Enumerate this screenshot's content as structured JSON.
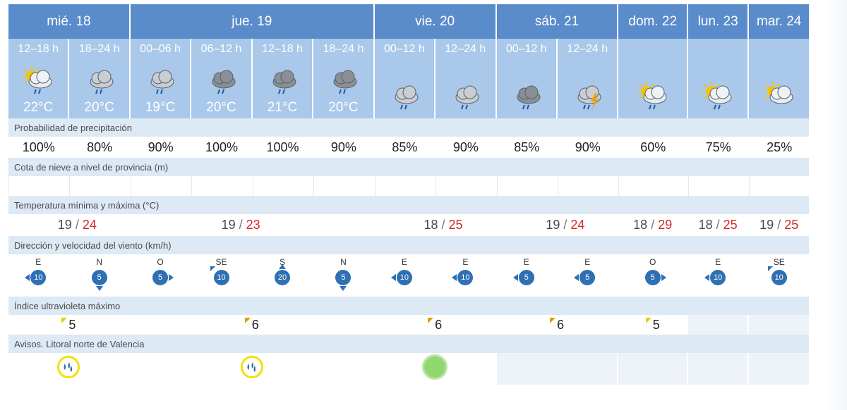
{
  "days": [
    {
      "label": "mié. 18",
      "span": 2
    },
    {
      "label": "jue. 19",
      "span": 4
    },
    {
      "label": "vie. 20",
      "span": 2
    },
    {
      "label": "sáb. 21",
      "span": 2
    },
    {
      "label": "dom. 22",
      "span": 1
    },
    {
      "label": "lun. 23",
      "span": 1
    },
    {
      "label": "mar. 24",
      "span": 1
    }
  ],
  "slots": [
    {
      "label": "12–18 h",
      "icon": "sun-cloud-rain-icon",
      "temp": "22°C"
    },
    {
      "label": "18–24 h",
      "icon": "cloud-rain-icon",
      "temp": "20°C"
    },
    {
      "label": "00–06 h",
      "icon": "cloud-rain-icon",
      "temp": "19°C"
    },
    {
      "label": "06–12 h",
      "icon": "dark-cloud-rain-icon",
      "temp": "20°C"
    },
    {
      "label": "12–18 h",
      "icon": "dark-cloud-rain-icon",
      "temp": "21°C"
    },
    {
      "label": "18–24 h",
      "icon": "dark-cloud-rain-icon",
      "temp": "20°C"
    },
    {
      "label": "00–12 h",
      "icon": "cloud-rain-icon",
      "temp": ""
    },
    {
      "label": "12–24 h",
      "icon": "cloud-rain-icon",
      "temp": ""
    },
    {
      "label": "00–12 h",
      "icon": "dark-cloud-rain-icon",
      "temp": ""
    },
    {
      "label": "12–24 h",
      "icon": "storm-icon",
      "temp": ""
    },
    {
      "label": "",
      "icon": "sun-cloud-rain-icon",
      "temp": ""
    },
    {
      "label": "",
      "icon": "sun-cloud-rain-icon",
      "temp": ""
    },
    {
      "label": "",
      "icon": "sun-cloud-icon",
      "temp": ""
    }
  ],
  "labels": {
    "precip": "Probabilidad de precipitación",
    "snow": "Cota de nieve a nivel de provincia (m)",
    "temp": "Temperatura mínima y máxima (°C)",
    "wind": "Dirección y velocidad del viento (km/h)",
    "uv": "Índice ultravioleta máximo",
    "avisos": "Avisos. Litoral norte de Valencia"
  },
  "precip": [
    "100%",
    "80%",
    "90%",
    "100%",
    "100%",
    "90%",
    "85%",
    "90%",
    "85%",
    "90%",
    "60%",
    "75%",
    "25%"
  ],
  "minmax": [
    {
      "min": "19",
      "max": "24"
    },
    {
      "min": "19",
      "max": "23"
    },
    {
      "min": "18",
      "max": "25"
    },
    {
      "min": "19",
      "max": "24"
    },
    {
      "min": "18",
      "max": "29"
    },
    {
      "min": "18",
      "max": "25"
    },
    {
      "min": "19",
      "max": "25"
    }
  ],
  "wind": [
    {
      "dir": "E",
      "speed": "10",
      "arrow": "left"
    },
    {
      "dir": "N",
      "speed": "5",
      "arrow": "down"
    },
    {
      "dir": "O",
      "speed": "5",
      "arrow": "right"
    },
    {
      "dir": "SE",
      "speed": "10",
      "arrow": "nw"
    },
    {
      "dir": "S",
      "speed": "20",
      "arrow": "up"
    },
    {
      "dir": "N",
      "speed": "5",
      "arrow": "down"
    },
    {
      "dir": "E",
      "speed": "10",
      "arrow": "left"
    },
    {
      "dir": "E",
      "speed": "10",
      "arrow": "left"
    },
    {
      "dir": "E",
      "speed": "5",
      "arrow": "left"
    },
    {
      "dir": "E",
      "speed": "5",
      "arrow": "left"
    },
    {
      "dir": "O",
      "speed": "5",
      "arrow": "right"
    },
    {
      "dir": "E",
      "speed": "10",
      "arrow": "left"
    },
    {
      "dir": "SE",
      "speed": "10",
      "arrow": "nw"
    }
  ],
  "uv": [
    {
      "value": "5",
      "level": "yellow"
    },
    {
      "value": "6",
      "level": "orange"
    },
    {
      "value": "6",
      "level": "orange"
    },
    {
      "value": "6",
      "level": "orange"
    },
    {
      "value": "5",
      "level": "yellow"
    },
    {
      "value": "",
      "level": "none"
    },
    {
      "value": "",
      "level": "none"
    }
  ],
  "avisos": [
    "yellow-rain-warning-icon",
    "yellow-rain-warning-icon",
    "green-no-warning-icon",
    "",
    "",
    "",
    ""
  ],
  "colors": {
    "header": "#5a8ccb",
    "slot": "#a9c8ea",
    "label_band": "#dde9f4",
    "max_temp": "#d02a2a",
    "wind_circle": "#2f6fb4"
  }
}
